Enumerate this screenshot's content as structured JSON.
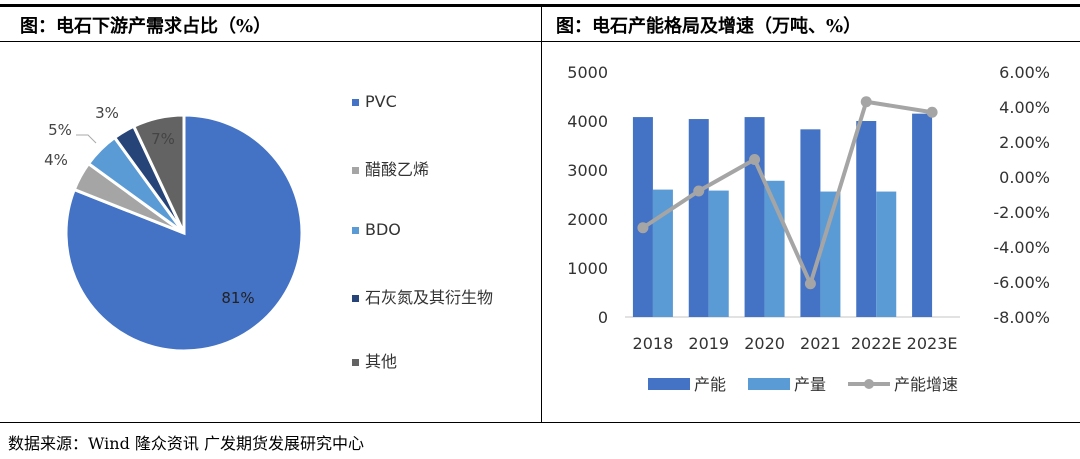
{
  "left_title": "图：电石下游产需求占比（%）",
  "right_title": "图：电石产能格局及增速（万吨、%）",
  "source": "数据来源：Wind 隆众资讯 广发期货发展研究中心",
  "chart_data": [
    {
      "type": "pie",
      "labels": [
        "PVC",
        "醋酸乙烯",
        "BDO",
        "石灰氮及其衍生物",
        "其他"
      ],
      "values": [
        81,
        4,
        5,
        3,
        7
      ],
      "data_labels": [
        "81%",
        "4%",
        "5%",
        "3%",
        "7%"
      ],
      "colors": [
        "#4472C4",
        "#A5A5A5",
        "#5B9BD5",
        "#264478",
        "#636363"
      ],
      "legend": "right"
    },
    {
      "type": "bar+line",
      "categories": [
        "2018",
        "2019",
        "2020",
        "2021",
        "2022E",
        "2023E"
      ],
      "series": [
        {
          "name": "产能",
          "type": "bar",
          "axis": "left",
          "color": "#4472C4",
          "values": [
            4080,
            4040,
            4080,
            3830,
            4000,
            4150
          ]
        },
        {
          "name": "产量",
          "type": "bar",
          "axis": "left",
          "color": "#5B9BD5",
          "values": [
            2600,
            2580,
            2780,
            2560,
            2560,
            null
          ]
        },
        {
          "name": "产能增速",
          "type": "line",
          "axis": "right",
          "color": "#A5A5A5",
          "values": [
            -2.9,
            -0.8,
            1.0,
            -6.1,
            4.3,
            3.7
          ]
        }
      ],
      "left_ylim": [
        0,
        5000
      ],
      "left_ticks": [
        "0",
        "1000",
        "2000",
        "3000",
        "4000",
        "5000"
      ],
      "right_ylim": [
        -8,
        6
      ],
      "right_ticks": [
        "-8.00%",
        "-6.00%",
        "-4.00%",
        "-2.00%",
        "0.00%",
        "2.00%",
        "4.00%",
        "6.00%"
      ],
      "grid": false,
      "legend": "bottom"
    }
  ]
}
